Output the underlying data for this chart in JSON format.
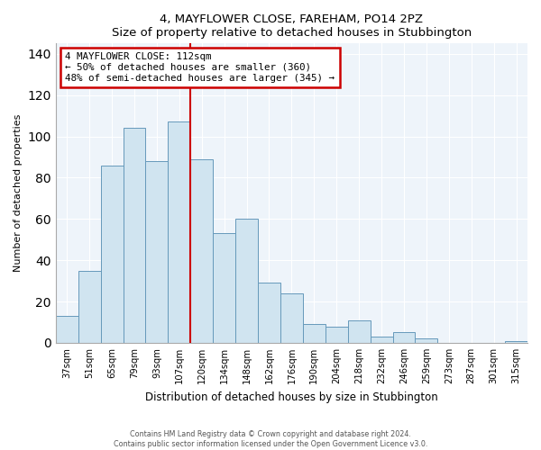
{
  "title": "4, MAYFLOWER CLOSE, FAREHAM, PO14 2PZ",
  "subtitle": "Size of property relative to detached houses in Stubbington",
  "xlabel": "Distribution of detached houses by size in Stubbington",
  "ylabel": "Number of detached properties",
  "bar_labels": [
    "37sqm",
    "51sqm",
    "65sqm",
    "79sqm",
    "93sqm",
    "107sqm",
    "120sqm",
    "134sqm",
    "148sqm",
    "162sqm",
    "176sqm",
    "190sqm",
    "204sqm",
    "218sqm",
    "232sqm",
    "246sqm",
    "259sqm",
    "273sqm",
    "287sqm",
    "301sqm",
    "315sqm"
  ],
  "bar_values": [
    13,
    35,
    86,
    104,
    88,
    107,
    89,
    53,
    60,
    29,
    24,
    9,
    8,
    11,
    3,
    5,
    2,
    0,
    0,
    0,
    1
  ],
  "bar_color": "#d0e4f0",
  "bar_edge_color": "#6699bb",
  "vline_x": 5.5,
  "vline_color": "#cc0000",
  "annotation_title": "4 MAYFLOWER CLOSE: 112sqm",
  "annotation_line1": "← 50% of detached houses are smaller (360)",
  "annotation_line2": "48% of semi-detached houses are larger (345) →",
  "annotation_box_edge": "#cc0000",
  "ylim": [
    0,
    145
  ],
  "yticks": [
    0,
    20,
    40,
    60,
    80,
    100,
    120,
    140
  ],
  "axes_bg": "#eef4fa",
  "grid_color": "#ffffff",
  "footer1": "Contains HM Land Registry data © Crown copyright and database right 2024.",
  "footer2": "Contains public sector information licensed under the Open Government Licence v3.0."
}
